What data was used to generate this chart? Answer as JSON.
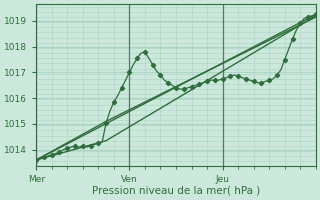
{
  "title": "",
  "xlabel": "Pression niveau de la mer( hPa )",
  "ylabel": "",
  "background_color": "#cce8dc",
  "grid_color_h": "#aad4c4",
  "grid_color_v": "#aad4c4",
  "line_color": "#2d6e3a",
  "dark_line_color": "#336644",
  "ylim": [
    1013.35,
    1019.65
  ],
  "xlim": [
    0,
    72
  ],
  "yticks": [
    1014,
    1015,
    1016,
    1017,
    1018,
    1019
  ],
  "day_labels": [
    "Mer",
    "Ven",
    "Jeu"
  ],
  "day_positions": [
    0,
    24,
    48
  ],
  "wavy_x": [
    0,
    1,
    2,
    3,
    4,
    5,
    6,
    7,
    8,
    9,
    10,
    11,
    12,
    13,
    14,
    15,
    16,
    17,
    18,
    19,
    20,
    21,
    22,
    23,
    24,
    25,
    26,
    27,
    28,
    29,
    30,
    31,
    32,
    33,
    34,
    35,
    36,
    37,
    38,
    39,
    40,
    41,
    42,
    43,
    44,
    45,
    46,
    47,
    48,
    49,
    50,
    51,
    52,
    53,
    54,
    55,
    56,
    57,
    58,
    59,
    60,
    61,
    62,
    63,
    64,
    65,
    66,
    67,
    68,
    69,
    70,
    71,
    72
  ],
  "wavy_y": [
    1013.6,
    1013.65,
    1013.7,
    1013.75,
    1013.8,
    1013.85,
    1013.9,
    1014.0,
    1014.05,
    1014.1,
    1014.15,
    1014.1,
    1014.15,
    1014.1,
    1014.15,
    1014.2,
    1014.25,
    1014.3,
    1015.05,
    1015.5,
    1015.85,
    1016.1,
    1016.4,
    1016.7,
    1017.0,
    1017.3,
    1017.55,
    1017.75,
    1017.8,
    1017.55,
    1017.3,
    1017.05,
    1016.9,
    1016.7,
    1016.6,
    1016.5,
    1016.4,
    1016.35,
    1016.35,
    1016.4,
    1016.45,
    1016.5,
    1016.55,
    1016.6,
    1016.65,
    1016.7,
    1016.7,
    1016.7,
    1016.75,
    1016.8,
    1016.85,
    1016.9,
    1016.85,
    1016.8,
    1016.75,
    1016.7,
    1016.65,
    1016.6,
    1016.6,
    1016.65,
    1016.7,
    1016.75,
    1016.9,
    1017.1,
    1017.5,
    1017.9,
    1018.3,
    1018.65,
    1018.9,
    1019.1,
    1019.15,
    1019.2,
    1019.25
  ],
  "trend1_x": [
    0,
    72
  ],
  "trend1_y": [
    1013.6,
    1019.25
  ],
  "trend2_x": [
    0,
    18,
    72
  ],
  "trend2_y": [
    1013.6,
    1014.35,
    1019.2
  ],
  "trend3_x": [
    0,
    18,
    72
  ],
  "trend3_y": [
    1013.6,
    1015.1,
    1019.15
  ]
}
